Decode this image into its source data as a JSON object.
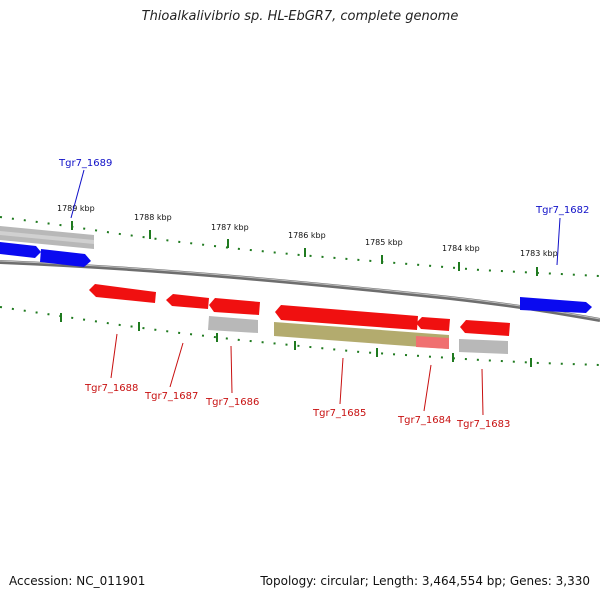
{
  "title": "Thioalkalivibrio sp. HL-EbGR7, complete genome",
  "footer": {
    "accession": "Accession: NC_011901",
    "summary": "Topology: circular; Length: 3,464,554 bp; Genes: 3,330"
  },
  "colors": {
    "forward_gene": "#0a0af0",
    "reverse_gene": "#f01010",
    "rna_gray": "#b8b8b8",
    "olive_feature": "#b3ab6e",
    "backbone": "#808080",
    "tick_green": "#1f7a1f",
    "forward_label": "#1010c8",
    "reverse_label": "#c81010"
  },
  "kbp_ticks": [
    {
      "label": "1789 kbp"
    },
    {
      "label": "1788 kbp"
    },
    {
      "label": "1787 kbp"
    },
    {
      "label": "1786 kbp"
    },
    {
      "label": "1785 kbp"
    },
    {
      "label": "1784 kbp"
    },
    {
      "label": "1783 kbp"
    }
  ],
  "forward_genes": [
    {
      "label": "Tgr7_1689"
    },
    {
      "label": "Tgr7_1682"
    }
  ],
  "reverse_genes": [
    {
      "label": "Tgr7_1688"
    },
    {
      "label": "Tgr7_1687"
    },
    {
      "label": "Tgr7_1686"
    },
    {
      "label": "Tgr7_1685"
    },
    {
      "label": "Tgr7_1684"
    },
    {
      "label": "Tgr7_1683"
    }
  ]
}
